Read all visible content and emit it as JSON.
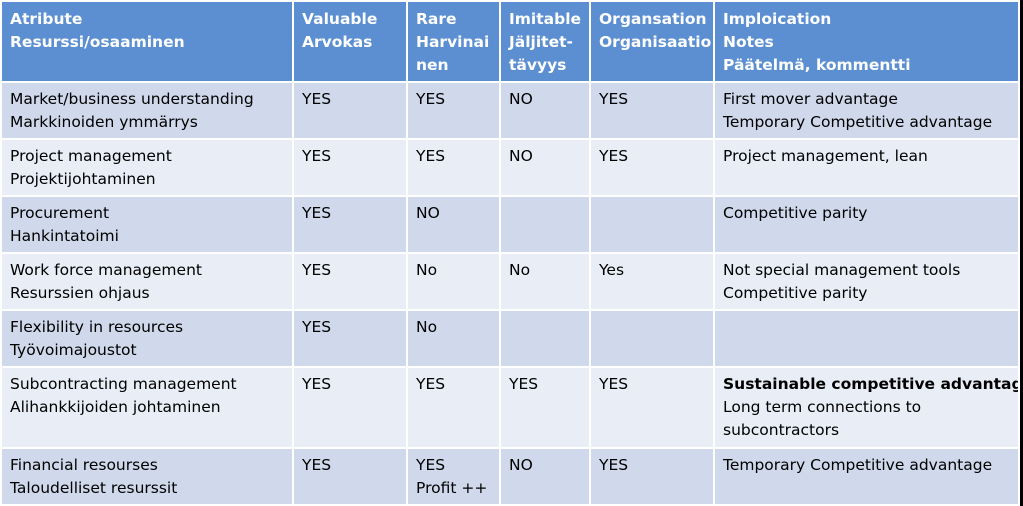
{
  "headers": [
    [
      "Atribute",
      "Resurssi/osaaminen"
    ],
    [
      "Valuable",
      "Arvokas"
    ],
    [
      "Rare",
      "Harvinai",
      "nen"
    ],
    [
      "Imitable",
      "Jäljitet-",
      "tävyys"
    ],
    [
      "Organsation",
      "Organisaatio"
    ],
    [
      "Imploication",
      "Notes",
      "Päätelmä, kommentti"
    ]
  ],
  "rows": [
    {
      "attribute": [
        "Market/business understanding",
        "Markkinoiden ymmärrys"
      ],
      "valuable": "YES",
      "rare": "YES",
      "rare2": "",
      "imitable": "NO",
      "organisation": "YES",
      "notes": [
        "First mover advantage",
        "Temporary Competitive advantage"
      ],
      "notes_bold": ""
    },
    {
      "attribute": [
        "Project management",
        "Projektijohtaminen"
      ],
      "valuable": "YES",
      "rare": "YES",
      "rare2": "",
      "imitable": "NO",
      "organisation": "YES",
      "notes": [
        "Project management, lean",
        ""
      ],
      "notes_bold": ""
    },
    {
      "attribute": [
        "Procurement",
        "Hankintatoimi"
      ],
      "valuable": "YES",
      "rare": "NO",
      "rare2": "",
      "imitable": "",
      "organisation": "",
      "notes": [
        "Competitive  parity",
        ""
      ],
      "notes_bold": ""
    },
    {
      "attribute": [
        "Work force management",
        "Resurssien ohjaus"
      ],
      "valuable": "YES",
      "rare": "No",
      "rare2": "",
      "imitable": "No",
      "organisation": "Yes",
      "notes": [
        "Not special management tools",
        "Competitive parity"
      ],
      "notes_bold": ""
    },
    {
      "attribute": [
        "Flexibility in resources",
        "Työvoimajoustot"
      ],
      "valuable": "YES",
      "rare": "No",
      "rare2": "",
      "imitable": "",
      "organisation": "",
      "notes": [
        "",
        ""
      ],
      "notes_bold": ""
    },
    {
      "attribute": [
        "Subcontracting  management",
        "Alihankkijoiden johtaminen"
      ],
      "valuable": "YES",
      "rare": "YES",
      "rare2": "",
      "imitable": "YES",
      "organisation": "YES",
      "notes": [
        "Long term connections to",
        "subcontractors"
      ],
      "notes_bold": "Sustainable competitive advantage"
    },
    {
      "attribute": [
        "Financial resourses",
        "Taloudelliset resurssit"
      ],
      "valuable": "YES",
      "rare": "YES",
      "rare2": "Profit ++",
      "imitable": "NO",
      "organisation": "YES",
      "notes": [
        "Temporary Competitive advantage",
        ""
      ],
      "notes_bold": ""
    }
  ]
}
